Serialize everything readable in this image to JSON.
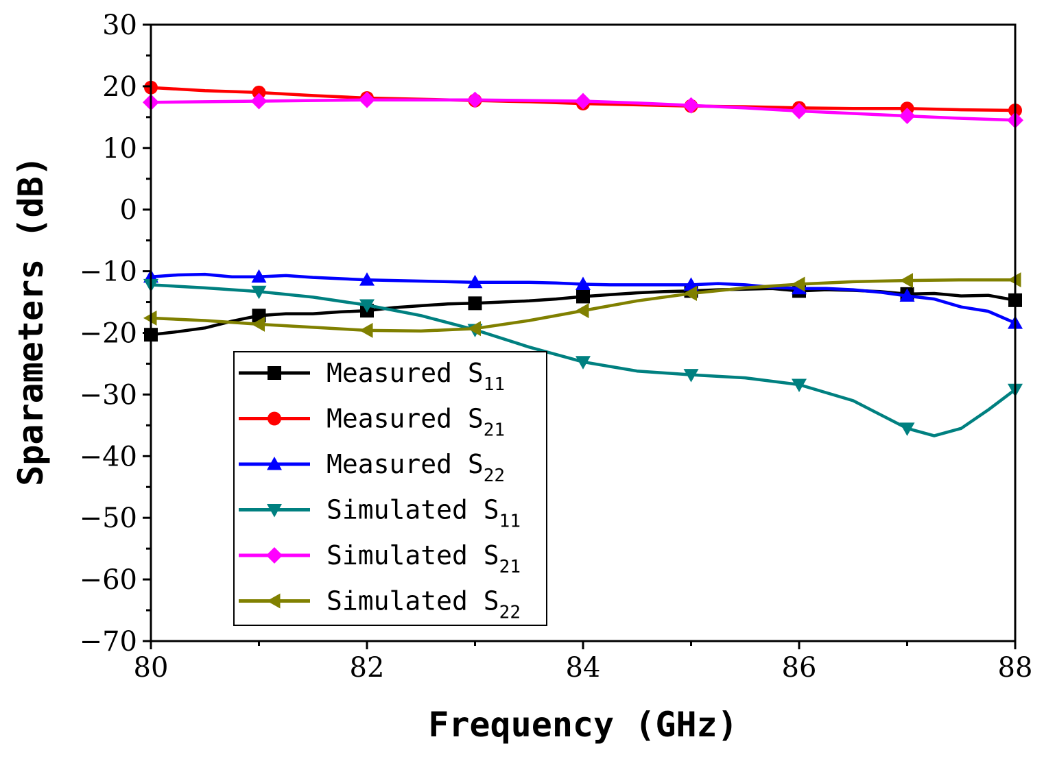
{
  "chart_data": {
    "type": "line",
    "title": "",
    "xlabel": "Frequency (GHz)",
    "ylabel": "Sparameters (dB)",
    "xlim": [
      80,
      88
    ],
    "ylim": [
      -70,
      30
    ],
    "xticks": [
      80,
      82,
      84,
      86,
      88
    ],
    "yticks": [
      30,
      20,
      10,
      0,
      -10,
      -20,
      -30,
      -40,
      -50,
      -60,
      -70
    ],
    "xtick_labels": [
      "80",
      "82",
      "84",
      "86",
      "88"
    ],
    "ytick_labels": [
      "30",
      "20",
      "10",
      "0",
      "−10",
      "−20",
      "−30",
      "−40",
      "−50",
      "−60",
      "−70"
    ],
    "legend_position": "lower-left",
    "series": [
      {
        "name": "Measured S11",
        "label_main": "Measured S",
        "label_sub": "11",
        "color": "#000000",
        "marker": "square",
        "x": [
          80,
          80.25,
          80.5,
          80.75,
          81,
          81.25,
          81.5,
          81.75,
          82,
          82.25,
          82.5,
          82.75,
          83,
          83.25,
          83.5,
          83.75,
          84,
          84.25,
          84.5,
          84.75,
          85,
          85.25,
          85.5,
          85.75,
          86,
          86.25,
          86.5,
          86.75,
          87,
          87.25,
          87.5,
          87.75,
          88
        ],
        "y": [
          -20.3,
          -19.8,
          -19.2,
          -18.1,
          -17.2,
          -16.9,
          -16.9,
          -16.6,
          -16.4,
          -15.9,
          -15.6,
          -15.3,
          -15.2,
          -15.0,
          -14.8,
          -14.5,
          -14.1,
          -13.8,
          -13.5,
          -13.3,
          -13.2,
          -13.0,
          -12.9,
          -12.8,
          -13.2,
          -13.0,
          -13.1,
          -13.3,
          -13.7,
          -13.6,
          -14.0,
          -13.9,
          -14.7
        ],
        "marker_x": [
          80,
          81,
          82,
          83,
          84,
          85,
          86,
          87,
          88
        ],
        "marker_y": [
          -20.3,
          -17.2,
          -16.4,
          -15.2,
          -14.1,
          -13.2,
          -13.2,
          -13.7,
          -14.7
        ]
      },
      {
        "name": "Measured S21",
        "label_main": "Measured S",
        "label_sub": "21",
        "color": "#ff0000",
        "marker": "circle",
        "x": [
          80,
          80.5,
          81,
          81.5,
          82,
          82.5,
          83,
          83.5,
          84,
          84.5,
          85,
          85.5,
          86,
          86.5,
          87,
          87.5,
          88
        ],
        "y": [
          19.8,
          19.3,
          19.0,
          18.5,
          18.1,
          17.9,
          17.7,
          17.5,
          17.2,
          17.0,
          16.8,
          16.7,
          16.5,
          16.4,
          16.4,
          16.2,
          16.1
        ],
        "marker_x": [
          80,
          81,
          82,
          83,
          84,
          85,
          86,
          87,
          88
        ],
        "marker_y": [
          19.8,
          19.0,
          18.1,
          17.7,
          17.2,
          16.8,
          16.5,
          16.4,
          16.1
        ]
      },
      {
        "name": "Measured S22",
        "label_main": "Measured S",
        "label_sub": "22",
        "color": "#0000ff",
        "marker": "triangle-up",
        "x": [
          80,
          80.25,
          80.5,
          80.75,
          81,
          81.25,
          81.5,
          81.75,
          82,
          82.25,
          82.5,
          82.75,
          83,
          83.25,
          83.5,
          83.75,
          84,
          84.25,
          84.5,
          84.75,
          85,
          85.25,
          85.5,
          85.75,
          86,
          86.25,
          86.5,
          86.75,
          87,
          87.25,
          87.5,
          87.75,
          88
        ],
        "y": [
          -10.9,
          -10.6,
          -10.5,
          -10.9,
          -10.9,
          -10.7,
          -11.0,
          -11.2,
          -11.4,
          -11.5,
          -11.6,
          -11.7,
          -11.8,
          -11.8,
          -11.8,
          -11.9,
          -12.1,
          -12.2,
          -12.2,
          -12.2,
          -12.2,
          -12.0,
          -12.2,
          -12.6,
          -12.8,
          -12.8,
          -13.0,
          -13.4,
          -14.0,
          -14.5,
          -15.8,
          -16.5,
          -18.4
        ],
        "marker_x": [
          80,
          81,
          82,
          83,
          84,
          85,
          86,
          87,
          88
        ],
        "marker_y": [
          -10.9,
          -10.9,
          -11.4,
          -11.8,
          -12.1,
          -12.2,
          -12.8,
          -14.0,
          -18.4
        ]
      },
      {
        "name": "Simulated S11",
        "label_main": "Simulated S",
        "label_sub": "11",
        "color": "#008080",
        "marker": "triangle-down",
        "x": [
          80,
          80.5,
          81,
          81.5,
          82,
          82.5,
          83,
          83.5,
          84,
          84.5,
          85,
          85.5,
          86,
          86.5,
          87,
          87.25,
          87.5,
          87.75,
          88
        ],
        "y": [
          -12.2,
          -12.7,
          -13.3,
          -14.2,
          -15.5,
          -17.2,
          -19.5,
          -22.3,
          -24.7,
          -26.2,
          -26.8,
          -27.3,
          -28.4,
          -31.0,
          -35.5,
          -36.7,
          -35.5,
          -32.5,
          -29.2
        ],
        "marker_x": [
          80,
          81,
          82,
          83,
          84,
          85,
          86,
          87,
          88
        ],
        "marker_y": [
          -12.2,
          -13.3,
          -15.5,
          -19.5,
          -24.7,
          -26.8,
          -28.4,
          -35.5,
          -29.2
        ]
      },
      {
        "name": "Simulated S21",
        "label_main": "Simulated S",
        "label_sub": "21",
        "color": "#ff00ff",
        "marker": "diamond",
        "x": [
          80,
          80.5,
          81,
          81.5,
          82,
          82.5,
          83,
          83.5,
          84,
          84.5,
          85,
          85.5,
          86,
          86.5,
          87,
          87.5,
          88
        ],
        "y": [
          17.4,
          17.5,
          17.6,
          17.7,
          17.8,
          17.8,
          17.8,
          17.7,
          17.6,
          17.3,
          16.9,
          16.5,
          16.0,
          15.6,
          15.2,
          14.8,
          14.5
        ],
        "marker_x": [
          80,
          81,
          82,
          83,
          84,
          85,
          86,
          87,
          88
        ],
        "marker_y": [
          17.4,
          17.6,
          17.8,
          17.8,
          17.6,
          16.9,
          16.0,
          15.2,
          14.5
        ]
      },
      {
        "name": "Simulated S22",
        "label_main": "Simulated S",
        "label_sub": "22",
        "color": "#808000",
        "marker": "triangle-left",
        "x": [
          80,
          80.5,
          81,
          81.5,
          82,
          82.5,
          83,
          83.5,
          84,
          84.5,
          85,
          85.5,
          86,
          86.5,
          87,
          87.5,
          88
        ],
        "y": [
          -17.6,
          -18.0,
          -18.6,
          -19.1,
          -19.6,
          -19.7,
          -19.3,
          -18.0,
          -16.4,
          -14.8,
          -13.6,
          -12.7,
          -12.1,
          -11.7,
          -11.5,
          -11.4,
          -11.4
        ],
        "marker_x": [
          80,
          81,
          82,
          83,
          84,
          85,
          86,
          87,
          88
        ],
        "marker_y": [
          -17.6,
          -18.6,
          -19.6,
          -19.3,
          -16.4,
          -13.6,
          -12.1,
          -11.5,
          -11.4
        ]
      }
    ]
  }
}
